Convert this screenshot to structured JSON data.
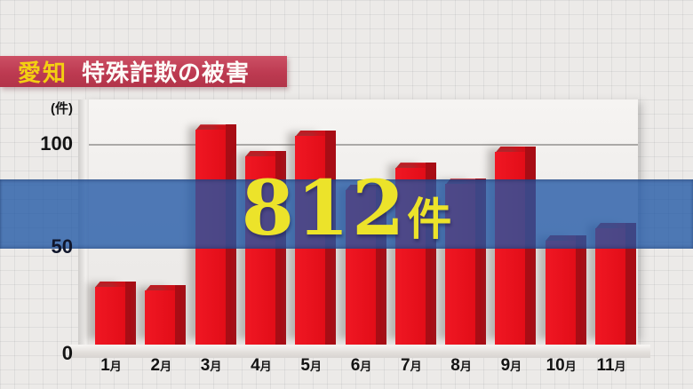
{
  "header": {
    "region_label": "愛知",
    "title": "特殊詐欺の被害"
  },
  "axis": {
    "unit": "(件)",
    "ytick_100": "100",
    "ytick_50": "50",
    "ytick_0": "0"
  },
  "callout": {
    "number": "812",
    "unit": "件"
  },
  "x_labels": [
    {
      "num": "1",
      "suffix": "月"
    },
    {
      "num": "2",
      "suffix": "月"
    },
    {
      "num": "3",
      "suffix": "月"
    },
    {
      "num": "4",
      "suffix": "月"
    },
    {
      "num": "5",
      "suffix": "月"
    },
    {
      "num": "6",
      "suffix": "月"
    },
    {
      "num": "7",
      "suffix": "月"
    },
    {
      "num": "8",
      "suffix": "月"
    },
    {
      "num": "9",
      "suffix": "月"
    },
    {
      "num": "10",
      "suffix": "月"
    },
    {
      "num": "11",
      "suffix": "月"
    }
  ],
  "chart_data": {
    "type": "bar",
    "title": "愛知 特殊詐欺の被害",
    "ylabel": "件",
    "categories": [
      "1月",
      "2月",
      "3月",
      "4月",
      "5月",
      "6月",
      "7月",
      "8月",
      "9月",
      "10月",
      "11月"
    ],
    "values": [
      29,
      27,
      107,
      94,
      104,
      77,
      88,
      80,
      96,
      52,
      58
    ],
    "yticks": [
      0,
      50,
      100
    ],
    "ylim": [
      0,
      120
    ],
    "grid": "single horizontal gridline at 100",
    "legend": "none",
    "annotation_total": "812件",
    "notes": "June and part of August/October/November bars are obscured by the translucent total band; June estimated so monthly values sum to the displayed total 812",
    "colors": {
      "bar_front": "#e9111d",
      "bar_side": "#a80d15",
      "bar_top": "#cf1019",
      "band_overlay": "rgba(32,87,165,0.78)",
      "callout_text": "#ece32a",
      "banner_background": "#bd3a51",
      "banner_region_text": "#f3cf12",
      "banner_title_text": "#fdfbf8",
      "page_background": "#eceae8"
    }
  }
}
